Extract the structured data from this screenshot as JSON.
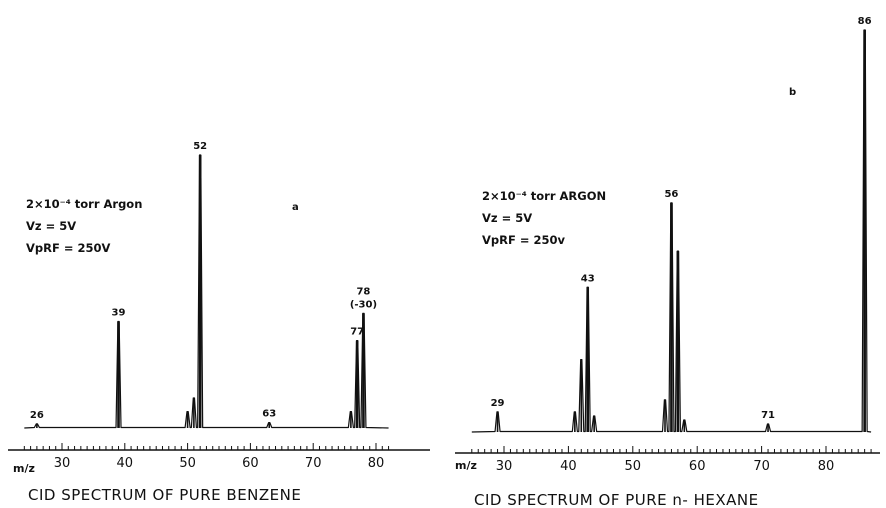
{
  "chart_data": [
    {
      "type": "line",
      "panel_letter": "a",
      "caption": "CID SPECTRUM OF PURE BENZENE",
      "xlabel": "m/z",
      "x_ticks": [
        "30",
        "40",
        "50",
        "60",
        "70",
        "80"
      ],
      "xlim": [
        24,
        82
      ],
      "conditions": [
        "2×10⁻⁴ torr Argon",
        "Vz = 5V",
        "VpRF = 250V"
      ],
      "peaks": [
        {
          "mz": 26,
          "intensity": 1.5,
          "label": "26"
        },
        {
          "mz": 39,
          "intensity": 39,
          "label": "39"
        },
        {
          "mz": 50,
          "intensity": 6
        },
        {
          "mz": 51,
          "intensity": 11
        },
        {
          "mz": 52,
          "intensity": 100,
          "label": "52"
        },
        {
          "mz": 63,
          "intensity": 2,
          "label": "63"
        },
        {
          "mz": 76,
          "intensity": 6
        },
        {
          "mz": 77,
          "intensity": 32,
          "label": "77"
        },
        {
          "mz": 78,
          "intensity": 42,
          "label": "78",
          "sublabel": "(-30)"
        }
      ]
    },
    {
      "type": "line",
      "panel_letter": "b",
      "caption": "CID SPECTRUM OF PURE n- HEXANE",
      "xlabel": "m/z",
      "x_ticks": [
        "30",
        "40",
        "50",
        "60",
        "70",
        "80"
      ],
      "xlim": [
        25,
        87
      ],
      "conditions": [
        "2×10⁻⁴ torr ARGON",
        "Vz = 5V",
        "VpRF = 250v"
      ],
      "peaks": [
        {
          "mz": 29,
          "intensity": 5,
          "label": "29"
        },
        {
          "mz": 41,
          "intensity": 5
        },
        {
          "mz": 42,
          "intensity": 18
        },
        {
          "mz": 43,
          "intensity": 36,
          "label": "43"
        },
        {
          "mz": 44,
          "intensity": 4
        },
        {
          "mz": 55,
          "intensity": 8
        },
        {
          "mz": 56,
          "intensity": 57,
          "label": "56"
        },
        {
          "mz": 57,
          "intensity": 45
        },
        {
          "mz": 58,
          "intensity": 3
        },
        {
          "mz": 71,
          "intensity": 2,
          "label": "71"
        },
        {
          "mz": 86,
          "intensity": 100,
          "label": "86"
        }
      ]
    }
  ]
}
